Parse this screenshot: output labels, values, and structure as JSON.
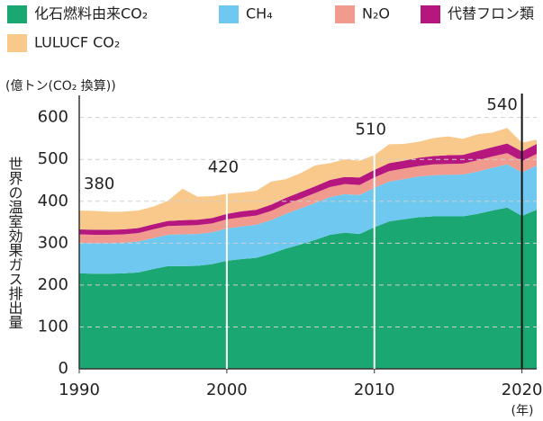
{
  "chart_data": {
    "type": "stacked_area",
    "y_unit_label": "(億トン(CO₂ 換算))",
    "y_axis_title": "世界の温室効果ガス排出量",
    "x_unit_label": "(年)",
    "x": [
      1990,
      1991,
      1992,
      1993,
      1994,
      1995,
      1996,
      1997,
      1998,
      1999,
      2000,
      2001,
      2002,
      2003,
      2004,
      2005,
      2006,
      2007,
      2008,
      2009,
      2010,
      2011,
      2012,
      2013,
      2014,
      2015,
      2016,
      2017,
      2018,
      2019,
      2020,
      2021
    ],
    "series": [
      {
        "name": "化石燃料由来CO₂",
        "color": "#1aa772",
        "values": [
          228,
          227,
          227,
          228,
          230,
          238,
          245,
          245,
          246,
          250,
          258,
          262,
          265,
          275,
          287,
          297,
          308,
          320,
          325,
          322,
          338,
          352,
          357,
          362,
          364,
          364,
          364,
          370,
          378,
          385,
          365,
          380
        ]
      },
      {
        "name": "CH₄",
        "color": "#6ec8f0",
        "values": [
          73,
          73,
          73,
          73,
          74,
          74,
          75,
          76,
          76,
          76,
          77,
          78,
          79,
          80,
          83,
          86,
          88,
          90,
          92,
          93,
          94,
          95,
          96,
          97,
          98,
          99,
          100,
          101,
          102,
          103,
          104,
          105
        ]
      },
      {
        "name": "N₂O",
        "color": "#f19a8e",
        "values": [
          20,
          20,
          20,
          20,
          20,
          21,
          21,
          21,
          21,
          21,
          22,
          22,
          22,
          22,
          23,
          23,
          24,
          24,
          24,
          24,
          25,
          25,
          25,
          25,
          26,
          26,
          26,
          27,
          27,
          27,
          27,
          28
        ]
      },
      {
        "name": "代替フロン類",
        "color": "#b5177f",
        "values": [
          12,
          12,
          12,
          12,
          12,
          12,
          12,
          13,
          13,
          13,
          13,
          14,
          14,
          15,
          15,
          16,
          16,
          17,
          17,
          18,
          18,
          19,
          19,
          20,
          20,
          21,
          21,
          22,
          22,
          23,
          23,
          24
        ]
      },
      {
        "name": "LULUCF CO₂",
        "color": "#f8c98a",
        "values": [
          45,
          45,
          43,
          42,
          42,
          42,
          48,
          75,
          55,
          52,
          48,
          45,
          45,
          55,
          45,
          45,
          50,
          40,
          42,
          40,
          35,
          45,
          40,
          38,
          43,
          45,
          38,
          40,
          35,
          37,
          21,
          10
        ]
      }
    ],
    "annotations": [
      {
        "x": 1990,
        "value": 380
      },
      {
        "x": 2000,
        "value": 420
      },
      {
        "x": 2010,
        "value": 510
      },
      {
        "x": 2020,
        "value": 540
      }
    ],
    "xlim": [
      1990,
      2021
    ],
    "xticks": [
      1990,
      2000,
      2010,
      2020
    ],
    "ylim": [
      0,
      640
    ],
    "yticks": [
      0,
      100,
      200,
      300,
      400,
      500,
      600
    ],
    "grid": true
  }
}
